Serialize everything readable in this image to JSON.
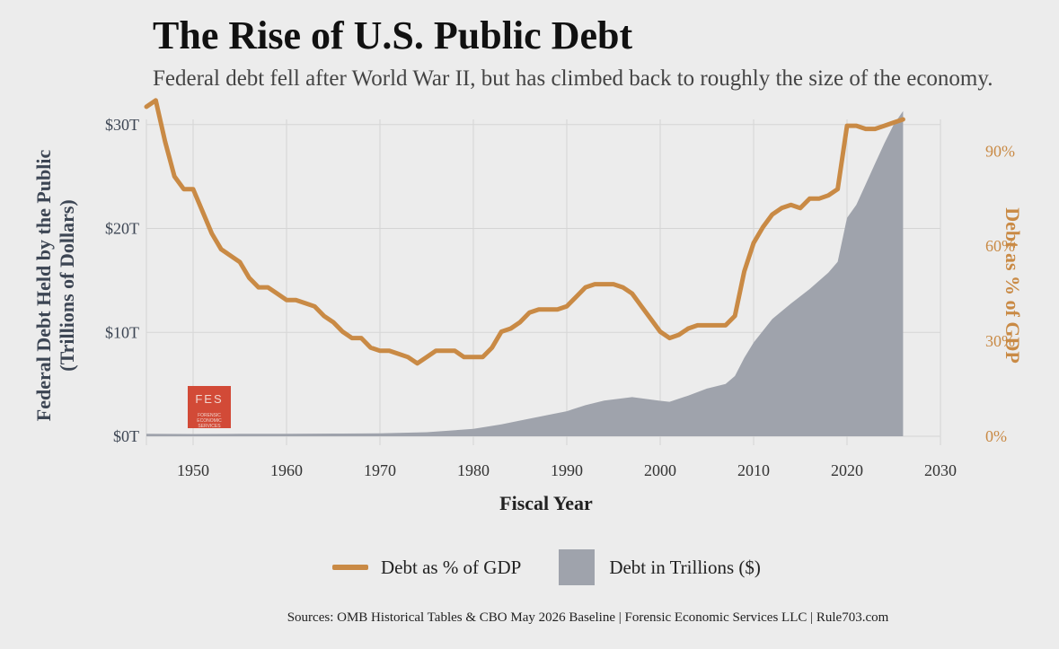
{
  "header": {
    "title": "The Rise of U.S. Public Debt",
    "subtitle": "Federal debt fell after World War II, but has climbed back to roughly the size of the economy."
  },
  "logo": {
    "text": "FES",
    "subtext": "FORENSIC ECONOMIC SERVICES"
  },
  "legend": {
    "line_label": "Debt as % of GDP",
    "area_label": "Debt in Trillions ($)"
  },
  "footer": {
    "source": "Sources: OMB Historical Tables & CBO May 2026 Baseline | Forensic Economic Services LLC | Rule703.com"
  },
  "colors": {
    "line": "#c98a45",
    "area": "#9fa3ac",
    "left_axis": "#3c4553",
    "right_axis": "#c98a45"
  },
  "chart_data": {
    "type": "area",
    "xlabel": "Fiscal Year",
    "ylabel": "Federal Debt Held by the Public\n(Trillions of Dollars)",
    "y2label": "Debt as % of GDP",
    "xlim": [
      1945,
      2030
    ],
    "ylim": [
      0,
      30.5
    ],
    "y2lim": [
      0,
      100
    ],
    "x_ticks": [
      1950,
      1960,
      1970,
      1980,
      1990,
      2000,
      2010,
      2020,
      2030
    ],
    "y_ticks": [
      {
        "v": 0,
        "label": "$0T"
      },
      {
        "v": 10,
        "label": "$10T"
      },
      {
        "v": 20,
        "label": "$20T"
      },
      {
        "v": 30,
        "label": "$30T"
      }
    ],
    "y2_ticks": [
      {
        "v": 0,
        "label": "0%"
      },
      {
        "v": 30,
        "label": "30%"
      },
      {
        "v": 60,
        "label": "60%"
      },
      {
        "v": 90,
        "label": "90%"
      }
    ],
    "grid": true,
    "legend_position": "bottom",
    "series": [
      {
        "name": "Debt as % of GDP",
        "type": "line",
        "axis": "right",
        "x": [
          1945,
          1946,
          1947,
          1948,
          1949,
          1950,
          1951,
          1952,
          1953,
          1954,
          1955,
          1956,
          1957,
          1958,
          1959,
          1960,
          1961,
          1962,
          1963,
          1964,
          1965,
          1966,
          1967,
          1968,
          1969,
          1970,
          1971,
          1972,
          1973,
          1974,
          1975,
          1976,
          1977,
          1978,
          1979,
          1980,
          1981,
          1982,
          1983,
          1984,
          1985,
          1986,
          1987,
          1988,
          1989,
          1990,
          1991,
          1992,
          1993,
          1994,
          1995,
          1996,
          1997,
          1998,
          1999,
          2000,
          2001,
          2002,
          2003,
          2004,
          2005,
          2006,
          2007,
          2008,
          2009,
          2010,
          2011,
          2012,
          2013,
          2014,
          2015,
          2016,
          2017,
          2018,
          2019,
          2020,
          2021,
          2022,
          2023,
          2024,
          2025,
          2026
        ],
        "values": [
          104,
          106,
          93,
          82,
          78,
          78,
          71,
          64,
          59,
          57,
          55,
          50,
          47,
          47,
          45,
          43,
          43,
          42,
          41,
          38,
          36,
          33,
          31,
          31,
          28,
          27,
          27,
          26,
          25,
          23,
          25,
          27,
          27,
          27,
          25,
          25,
          25,
          28,
          33,
          34,
          36,
          39,
          40,
          40,
          40,
          41,
          44,
          47,
          48,
          48,
          48,
          47,
          45,
          41,
          37,
          33,
          31,
          32,
          34,
          35,
          35,
          35,
          35,
          38,
          52,
          61,
          66,
          70,
          72,
          73,
          72,
          75,
          75,
          76,
          78,
          98,
          98,
          97,
          97,
          98,
          99,
          100
        ]
      },
      {
        "name": "Debt in Trillions ($)",
        "type": "area",
        "axis": "left",
        "x": [
          1945,
          1950,
          1955,
          1960,
          1965,
          1970,
          1975,
          1980,
          1983,
          1985,
          1988,
          1990,
          1992,
          1994,
          1997,
          2000,
          2001,
          2003,
          2005,
          2007,
          2008,
          2009,
          2010,
          2012,
          2014,
          2016,
          2018,
          2019,
          2020,
          2021,
          2022,
          2023,
          2024,
          2025,
          2026
        ],
        "values": [
          0.23,
          0.22,
          0.23,
          0.24,
          0.26,
          0.28,
          0.39,
          0.71,
          1.14,
          1.51,
          2.05,
          2.41,
          2.99,
          3.43,
          3.77,
          3.41,
          3.32,
          3.91,
          4.59,
          5.04,
          5.8,
          7.55,
          9.02,
          11.28,
          12.78,
          14.17,
          15.75,
          16.8,
          21.02,
          22.28,
          24.25,
          26.24,
          28.2,
          30.0,
          31.3
        ]
      }
    ]
  }
}
